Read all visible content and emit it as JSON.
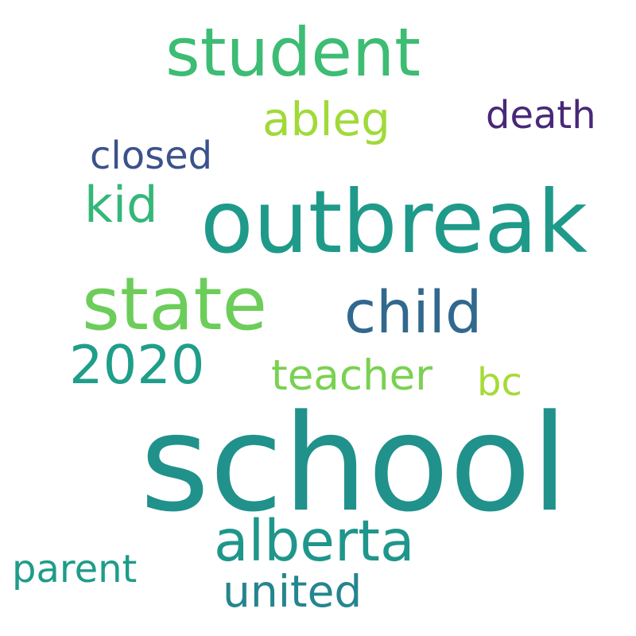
{
  "words": {
    "school": {
      "text": "school",
      "color": "#21918c"
    },
    "outbreak": {
      "text": "outbreak",
      "color": "#1f9a8a"
    },
    "student": {
      "text": "student",
      "color": "#3dbc74"
    },
    "state": {
      "text": "state",
      "color": "#6ccd5a"
    },
    "child": {
      "text": "child",
      "color": "#31688e"
    },
    "alberta": {
      "text": "alberta",
      "color": "#1f968b"
    },
    "2020": {
      "text": "2020",
      "color": "#1f9e89"
    },
    "kid": {
      "text": "kid",
      "color": "#35b779"
    },
    "ableg": {
      "text": "ableg",
      "color": "#a0da39"
    },
    "united": {
      "text": "united",
      "color": "#25858e"
    },
    "teacher": {
      "text": "teacher",
      "color": "#7ad151"
    },
    "death": {
      "text": "death",
      "color": "#482878"
    },
    "closed": {
      "text": "closed",
      "color": "#3b528b"
    },
    "parent": {
      "text": "parent",
      "color": "#1e9c89"
    },
    "bc": {
      "text": "bc",
      "color": "#a5db36"
    }
  }
}
